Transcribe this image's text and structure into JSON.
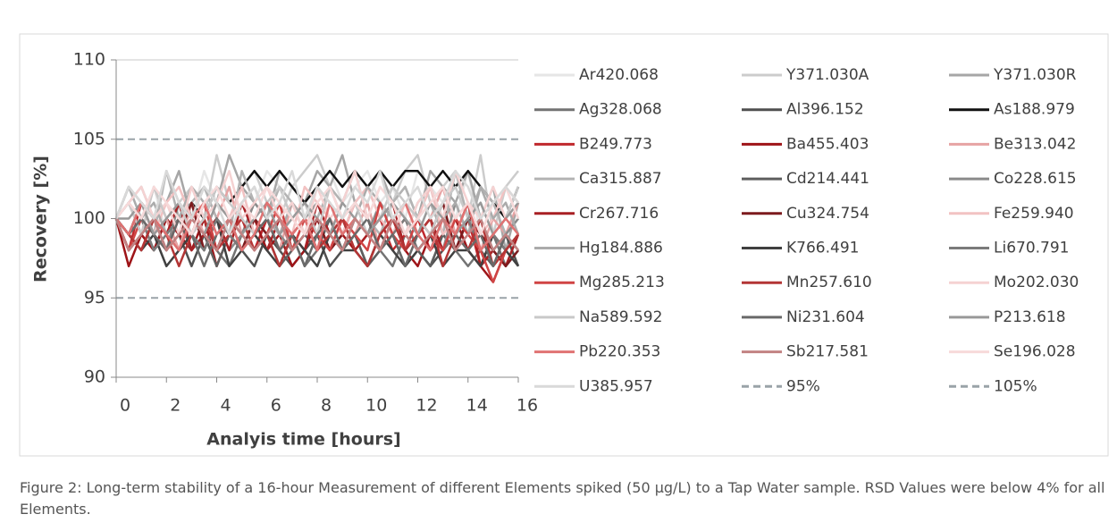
{
  "chart_data": {
    "type": "line",
    "ylabel": "Recovery [%]",
    "xlabel": "Analyis time [hours]",
    "caption": "Figure 2: Long-term stability of a 16-hour Measurement of different Elements spiked (50 µg/L) to a Tap Water sample. RSD Values were below 4% for all Elements.",
    "xlim": [
      0,
      16
    ],
    "xticks": [
      0,
      2,
      4,
      6,
      8,
      10,
      12,
      14,
      16
    ],
    "ylim": [
      90,
      110
    ],
    "yticks": [
      90,
      95,
      100,
      105,
      110
    ],
    "x": [
      0,
      0.5,
      1,
      1.5,
      2,
      2.5,
      3,
      3.5,
      4,
      4.5,
      5,
      5.5,
      6,
      6.5,
      7,
      7.5,
      8,
      8.5,
      9,
      9.5,
      10,
      10.5,
      11,
      11.5,
      12,
      12.5,
      13,
      13.5,
      14,
      14.5,
      15,
      15.5,
      16
    ],
    "series": [
      {
        "name": "Ar420.068",
        "color": "#e6e6e6",
        "values": [
          100,
          101,
          100,
          102,
          99,
          101,
          100,
          103,
          101,
          100,
          102,
          101,
          103,
          102,
          101,
          100,
          102,
          103,
          101,
          102,
          103,
          101,
          102,
          100,
          103,
          102,
          101,
          100,
          103,
          99,
          101,
          102,
          100
        ]
      },
      {
        "name": "Y371.030A",
        "color": "#cccccc",
        "values": [
          100,
          102,
          101,
          100,
          103,
          101,
          102,
          100,
          104,
          101,
          102,
          103,
          101,
          100,
          102,
          103,
          104,
          102,
          101,
          103,
          102,
          100,
          101,
          103,
          104,
          101,
          102,
          103,
          100,
          104,
          99,
          102,
          103
        ]
      },
      {
        "name": "Y371.030R",
        "color": "#a6a6a6",
        "values": [
          100,
          101,
          102,
          100,
          101,
          103,
          100,
          102,
          101,
          104,
          102,
          101,
          100,
          103,
          102,
          101,
          103,
          102,
          104,
          101,
          102,
          103,
          101,
          102,
          100,
          103,
          102,
          101,
          103,
          100,
          102,
          98,
          101
        ]
      },
      {
        "name": "Ag328.068",
        "color": "#737373",
        "values": [
          100,
          99,
          98,
          100,
          99,
          98,
          100,
          99,
          98,
          97,
          99,
          98,
          100,
          98,
          99,
          97,
          98,
          99,
          98,
          100,
          99,
          98,
          97,
          99,
          98,
          97,
          99,
          98,
          97,
          98,
          99,
          97,
          98
        ]
      },
      {
        "name": "Al396.152",
        "color": "#505050",
        "values": [
          100,
          98,
          99,
          98,
          100,
          99,
          97,
          99,
          98,
          100,
          98,
          97,
          99,
          98,
          97,
          98,
          99,
          97,
          98,
          99,
          97,
          98,
          99,
          97,
          98,
          97,
          98,
          99,
          98,
          97,
          98,
          99,
          97
        ]
      },
      {
        "name": "As188.979",
        "color": "#111111",
        "values": [
          100,
          99,
          101,
          100,
          99,
          100,
          101,
          100,
          102,
          101,
          102,
          103,
          102,
          103,
          102,
          101,
          102,
          103,
          102,
          103,
          102,
          103,
          102,
          103,
          103,
          102,
          103,
          102,
          103,
          102,
          101,
          100,
          102
        ]
      },
      {
        "name": "B249.773",
        "color": "#c0282d",
        "values": [
          100,
          98,
          101,
          99,
          100,
          98,
          99,
          101,
          98,
          100,
          99,
          98,
          100,
          99,
          98,
          100,
          99,
          98,
          100,
          98,
          99,
          100,
          98,
          99,
          100,
          98,
          99,
          98,
          100,
          97,
          99,
          98,
          99
        ]
      },
      {
        "name": "Ba455.403",
        "color": "#9e1418",
        "values": [
          100,
          97,
          99,
          98,
          100,
          99,
          98,
          100,
          97,
          99,
          98,
          100,
          98,
          99,
          97,
          98,
          100,
          98,
          99,
          98,
          97,
          99,
          100,
          98,
          97,
          99,
          98,
          100,
          98,
          97,
          96,
          98,
          99
        ]
      },
      {
        "name": "Be313.042",
        "color": "#e6a3a3",
        "values": [
          100,
          101,
          99,
          102,
          100,
          98,
          101,
          99,
          100,
          102,
          99,
          101,
          100,
          98,
          101,
          100,
          99,
          102,
          100,
          99,
          101,
          98,
          100,
          101,
          99,
          100,
          102,
          99,
          101,
          98,
          100,
          99,
          101
        ]
      },
      {
        "name": "Ca315.887",
        "color": "#b3b3b3",
        "values": [
          100,
          102,
          101,
          99,
          103,
          100,
          101,
          102,
          100,
          99,
          103,
          101,
          100,
          102,
          101,
          99,
          100,
          102,
          101,
          103,
          100,
          99,
          101,
          102,
          100,
          101,
          99,
          103,
          100,
          102,
          101,
          99,
          100
        ]
      },
      {
        "name": "Cd214.441",
        "color": "#5e5e5e",
        "values": [
          100,
          99,
          100,
          98,
          99,
          100,
          98,
          99,
          97,
          99,
          98,
          100,
          99,
          97,
          98,
          99,
          98,
          100,
          98,
          99,
          97,
          98,
          100,
          99,
          98,
          97,
          99,
          98,
          100,
          98,
          97,
          99,
          98
        ]
      },
      {
        "name": "Co228.615",
        "color": "#8a8a8a",
        "values": [
          100,
          101,
          99,
          100,
          98,
          101,
          100,
          99,
          100,
          98,
          99,
          101,
          100,
          99,
          98,
          100,
          101,
          99,
          98,
          100,
          99,
          101,
          100,
          98,
          99,
          100,
          98,
          101,
          99,
          100,
          98,
          99,
          100
        ]
      },
      {
        "name": "Cr267.716",
        "color": "#a82024",
        "values": [
          100,
          99,
          98,
          100,
          99,
          101,
          98,
          99,
          100,
          98,
          101,
          99,
          98,
          100,
          99,
          98,
          101,
          99,
          100,
          98,
          99,
          100,
          101,
          98,
          99,
          100,
          98,
          99,
          101,
          97,
          98,
          97,
          99
        ]
      },
      {
        "name": "Cu324.754",
        "color": "#7c1a1d",
        "values": [
          100,
          98,
          99,
          100,
          98,
          99,
          101,
          98,
          100,
          99,
          98,
          100,
          99,
          101,
          98,
          99,
          100,
          98,
          99,
          101,
          100,
          98,
          99,
          100,
          98,
          99,
          101,
          98,
          100,
          99,
          98,
          97,
          98
        ]
      },
      {
        "name": "Fe259.940",
        "color": "#f2c2c2",
        "values": [
          100,
          101,
          100,
          99,
          101,
          102,
          100,
          99,
          101,
          100,
          102,
          99,
          101,
          100,
          99,
          102,
          101,
          100,
          99,
          101,
          102,
          100,
          99,
          101,
          100,
          102,
          99,
          100,
          101,
          99,
          100,
          102,
          101
        ]
      },
      {
        "name": "Hg184.886",
        "color": "#ababab",
        "values": [
          100,
          102,
          100,
          101,
          99,
          100,
          102,
          101,
          99,
          100,
          101,
          102,
          100,
          99,
          101,
          100,
          102,
          101,
          99,
          100,
          102,
          101,
          100,
          99,
          101,
          102,
          100,
          101,
          99,
          102,
          100,
          101,
          99
        ]
      },
      {
        "name": "K766.491",
        "color": "#404040",
        "values": [
          100,
          99,
          98,
          99,
          97,
          98,
          99,
          98,
          100,
          97,
          98,
          99,
          98,
          97,
          99,
          98,
          97,
          99,
          98,
          98,
          97,
          99,
          98,
          97,
          98,
          99,
          97,
          98,
          98,
          97,
          99,
          98,
          97
        ]
      },
      {
        "name": "Li670.791",
        "color": "#7b7b7b",
        "values": [
          100,
          99,
          100,
          98,
          99,
          100,
          99,
          98,
          100,
          99,
          98,
          99,
          100,
          98,
          99,
          100,
          98,
          99,
          98,
          100,
          99,
          98,
          99,
          100,
          98,
          99,
          98,
          99,
          100,
          98,
          99,
          98,
          99
        ]
      },
      {
        "name": "Mg285.213",
        "color": "#d04444",
        "values": [
          100,
          98,
          100,
          99,
          98,
          100,
          99,
          101,
          98,
          99,
          100,
          98,
          99,
          101,
          98,
          100,
          99,
          98,
          100,
          99,
          98,
          101,
          99,
          98,
          100,
          99,
          98,
          100,
          99,
          98,
          96,
          98,
          99
        ]
      },
      {
        "name": "Mn257.610",
        "color": "#b33535",
        "values": [
          100,
          99,
          98,
          100,
          99,
          97,
          99,
          100,
          98,
          99,
          100,
          98,
          99,
          97,
          99,
          100,
          98,
          99,
          100,
          98,
          97,
          99,
          100,
          98,
          99,
          100,
          97,
          99,
          98,
          100,
          97,
          98,
          99
        ]
      },
      {
        "name": "Mo202.030",
        "color": "#f5d2d2",
        "values": [
          100,
          101,
          102,
          100,
          101,
          99,
          102,
          100,
          101,
          103,
          100,
          101,
          102,
          100,
          101,
          99,
          102,
          100,
          101,
          103,
          100,
          102,
          101,
          99,
          101,
          102,
          100,
          103,
          101,
          100,
          102,
          100,
          101
        ]
      },
      {
        "name": "Na589.592",
        "color": "#c9c9c9",
        "values": [
          100,
          101,
          99,
          102,
          100,
          101,
          99,
          100,
          102,
          101,
          100,
          99,
          101,
          102,
          100,
          101,
          99,
          102,
          100,
          101,
          99,
          100,
          102,
          101,
          100,
          99,
          101,
          102,
          100,
          101,
          99,
          100,
          102
        ]
      },
      {
        "name": "Ni231.604",
        "color": "#696969",
        "values": [
          100,
          99,
          100,
          99,
          98,
          100,
          99,
          97,
          99,
          100,
          98,
          99,
          100,
          98,
          99,
          97,
          99,
          100,
          98,
          99,
          100,
          98,
          99,
          97,
          99,
          98,
          100,
          99,
          98,
          99,
          97,
          99,
          98
        ]
      },
      {
        "name": "P213.618",
        "color": "#999999",
        "values": [
          100,
          100,
          101,
          99,
          100,
          101,
          100,
          99,
          101,
          100,
          99,
          100,
          101,
          99,
          100,
          101,
          100,
          99,
          101,
          100,
          99,
          100,
          101,
          100,
          99,
          101,
          100,
          99,
          100,
          101,
          99,
          100,
          101
        ]
      },
      {
        "name": "Pb220.353",
        "color": "#e07272",
        "values": [
          100,
          99,
          101,
          100,
          99,
          98,
          100,
          101,
          99,
          100,
          98,
          99,
          101,
          100,
          99,
          100,
          98,
          101,
          99,
          100,
          99,
          98,
          100,
          101,
          99,
          98,
          100,
          99,
          101,
          98,
          99,
          100,
          99
        ]
      },
      {
        "name": "Sb217.581",
        "color": "#c28282",
        "values": [
          100,
          98,
          99,
          100,
          98,
          99,
          100,
          99,
          98,
          100,
          99,
          98,
          99,
          100,
          98,
          99,
          100,
          99,
          98,
          100,
          99,
          98,
          100,
          99,
          98,
          99,
          100,
          98,
          99,
          100,
          98,
          99,
          98
        ]
      },
      {
        "name": "Se196.028",
        "color": "#f7dada",
        "values": [
          100,
          101,
          100,
          102,
          101,
          100,
          99,
          101,
          102,
          100,
          101,
          100,
          102,
          101,
          100,
          99,
          101,
          102,
          100,
          101,
          100,
          102,
          101,
          99,
          100,
          101,
          102,
          100,
          101,
          99,
          101,
          102,
          100
        ]
      },
      {
        "name": "U385.957",
        "color": "#d9d9d9",
        "values": [
          100,
          102,
          101,
          100,
          103,
          101,
          100,
          102,
          101,
          99,
          101,
          102,
          100,
          101,
          103,
          100,
          102,
          101,
          100,
          102,
          101,
          103,
          100,
          101,
          102,
          100,
          101,
          103,
          102,
          100,
          101,
          102,
          101
        ]
      },
      {
        "name": "95%",
        "color": "#9aa3a8",
        "line_style": "dashed",
        "values": [
          95,
          95,
          95,
          95,
          95,
          95,
          95,
          95,
          95,
          95,
          95,
          95,
          95,
          95,
          95,
          95,
          95,
          95,
          95,
          95,
          95,
          95,
          95,
          95,
          95,
          95,
          95,
          95,
          95,
          95,
          95,
          95,
          95
        ]
      },
      {
        "name": "105%",
        "color": "#9aa3a8",
        "line_style": "dashed",
        "values": [
          105,
          105,
          105,
          105,
          105,
          105,
          105,
          105,
          105,
          105,
          105,
          105,
          105,
          105,
          105,
          105,
          105,
          105,
          105,
          105,
          105,
          105,
          105,
          105,
          105,
          105,
          105,
          105,
          105,
          105,
          105,
          105,
          105
        ]
      }
    ]
  }
}
